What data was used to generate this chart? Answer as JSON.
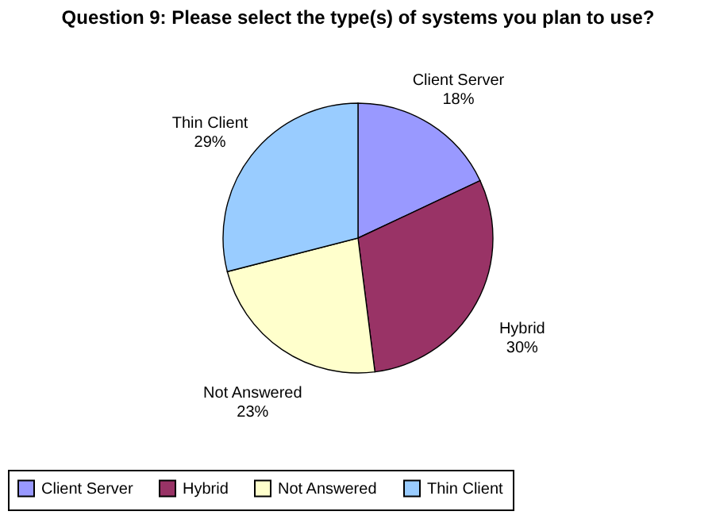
{
  "chart_data": {
    "type": "pie",
    "title": "Question 9: Please select the type(s) of systems you plan to use?",
    "categories": [
      "Client Server",
      "Hybrid",
      "Not Answered",
      "Thin Client"
    ],
    "values": [
      18,
      30,
      23,
      29
    ],
    "value_labels": [
      "18%",
      "30%",
      "23%",
      "29%"
    ],
    "colors": [
      "#9999ff",
      "#993366",
      "#ffffcc",
      "#99ccff"
    ],
    "legend": "bottom"
  }
}
